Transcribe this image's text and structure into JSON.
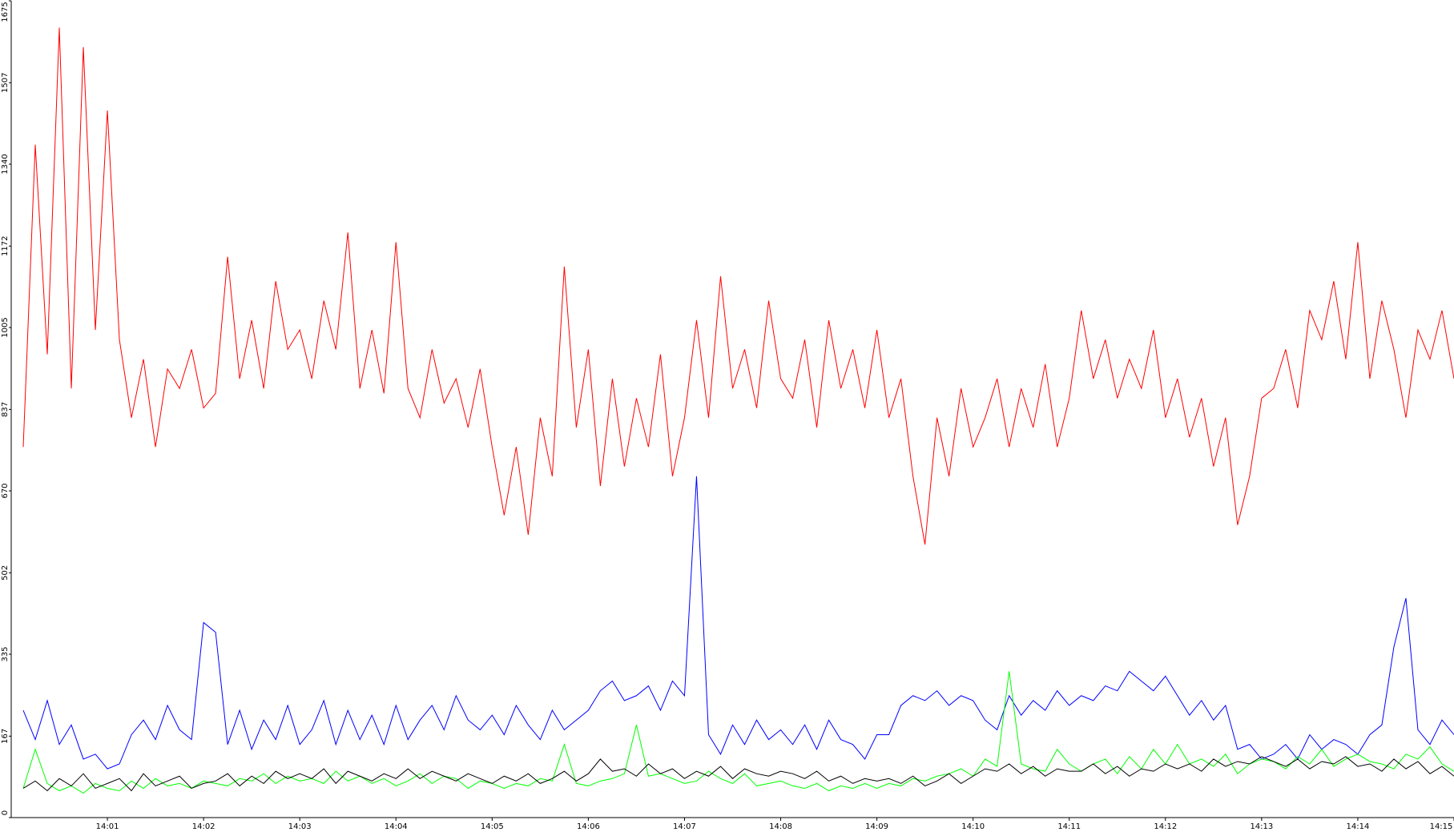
{
  "chart_data": {
    "type": "line",
    "xlim": [
      840,
      855
    ],
    "xticks": [
      {
        "value": 841,
        "label": "14:01"
      },
      {
        "value": 842,
        "label": "14:02"
      },
      {
        "value": 843,
        "label": "14:03"
      },
      {
        "value": 844,
        "label": "14:04"
      },
      {
        "value": 845,
        "label": "14:05"
      },
      {
        "value": 846,
        "label": "14:06"
      },
      {
        "value": 847,
        "label": "14:07"
      },
      {
        "value": 848,
        "label": "14:08"
      },
      {
        "value": 849,
        "label": "14:09"
      },
      {
        "value": 850,
        "label": "14:10"
      },
      {
        "value": 851,
        "label": "14:11"
      },
      {
        "value": 852,
        "label": "14:12"
      },
      {
        "value": 853,
        "label": "14:13"
      },
      {
        "value": 854,
        "label": "14:14"
      },
      {
        "value": 855,
        "label": "14:15"
      }
    ],
    "ylim": [
      0,
      1675
    ],
    "yticks": [
      0,
      167,
      335,
      502,
      670,
      837,
      1005,
      1172,
      1340,
      1507,
      1675
    ],
    "x": [
      840.125,
      840.25,
      840.375,
      840.5,
      840.625,
      840.75,
      840.875,
      841,
      841.125,
      841.25,
      841.375,
      841.5,
      841.625,
      841.75,
      841.875,
      842,
      842.125,
      842.25,
      842.375,
      842.5,
      842.625,
      842.75,
      842.875,
      843,
      843.125,
      843.25,
      843.375,
      843.5,
      843.625,
      843.75,
      843.875,
      844,
      844.125,
      844.25,
      844.375,
      844.5,
      844.625,
      844.75,
      844.875,
      845,
      845.125,
      845.25,
      845.375,
      845.5,
      845.625,
      845.75,
      845.875,
      846,
      846.125,
      846.25,
      846.375,
      846.5,
      846.625,
      846.75,
      846.875,
      847,
      847.125,
      847.25,
      847.375,
      847.5,
      847.625,
      847.75,
      847.875,
      848,
      848.125,
      848.25,
      848.375,
      848.5,
      848.625,
      848.75,
      848.875,
      849,
      849.125,
      849.25,
      849.375,
      849.5,
      849.625,
      849.75,
      849.875,
      850,
      850.125,
      850.25,
      850.375,
      850.5,
      850.625,
      850.75,
      850.875,
      851,
      851.125,
      851.25,
      851.375,
      851.5,
      851.625,
      851.75,
      851.875,
      852,
      852.125,
      852.25,
      852.375,
      852.5,
      852.625,
      852.75,
      852.875,
      853,
      853.125,
      853.25,
      853.375,
      853.5,
      853.625,
      853.75,
      853.875,
      854,
      854.125,
      854.25,
      854.375,
      854.5,
      854.625,
      854.75,
      854.875,
      855
    ],
    "series": [
      {
        "color": "#ff0000",
        "values": [
          760,
          1380,
          950,
          1620,
          880,
          1580,
          1000,
          1450,
          980,
          820,
          940,
          760,
          920,
          880,
          960,
          840,
          870,
          1150,
          900,
          1020,
          880,
          1100,
          960,
          1000,
          900,
          1060,
          960,
          1200,
          880,
          1000,
          870,
          1180,
          880,
          820,
          960,
          850,
          900,
          800,
          920,
          760,
          620,
          760,
          580,
          820,
          700,
          1130,
          800,
          960,
          680,
          900,
          720,
          860,
          760,
          950,
          700,
          820,
          1020,
          820,
          1110,
          880,
          960,
          840,
          1060,
          900,
          860,
          980,
          800,
          1020,
          880,
          960,
          840,
          1000,
          820,
          900,
          700,
          560,
          820,
          700,
          880,
          760,
          820,
          900,
          760,
          880,
          800,
          930,
          760,
          860,
          1040,
          900,
          980,
          860,
          940,
          880,
          1000,
          820,
          900,
          780,
          860,
          720,
          820,
          600,
          700,
          860,
          880,
          960,
          840,
          1040,
          980,
          1100,
          940,
          1180,
          900,
          1060,
          960,
          820,
          1000,
          940,
          1040,
          900
        ]
      },
      {
        "color": "#0000ff",
        "values": [
          220,
          160,
          240,
          150,
          190,
          120,
          130,
          100,
          110,
          170,
          200,
          160,
          230,
          180,
          160,
          400,
          380,
          150,
          220,
          140,
          200,
          160,
          230,
          150,
          180,
          240,
          150,
          220,
          160,
          210,
          150,
          230,
          160,
          200,
          230,
          180,
          250,
          200,
          180,
          210,
          170,
          230,
          190,
          160,
          220,
          180,
          200,
          220,
          260,
          280,
          240,
          250,
          270,
          220,
          280,
          250,
          700,
          170,
          130,
          190,
          150,
          200,
          160,
          180,
          150,
          190,
          140,
          200,
          160,
          150,
          120,
          170,
          170,
          230,
          250,
          240,
          260,
          230,
          250,
          240,
          200,
          180,
          250,
          210,
          240,
          220,
          260,
          230,
          250,
          240,
          270,
          260,
          300,
          280,
          260,
          290,
          250,
          210,
          240,
          200,
          230,
          140,
          150,
          120,
          130,
          150,
          120,
          170,
          140,
          160,
          150,
          130,
          170,
          190,
          350,
          450,
          180,
          150,
          200,
          170
        ]
      },
      {
        "color": "#00ff00",
        "values": [
          60,
          140,
          70,
          55,
          65,
          50,
          70,
          60,
          55,
          75,
          60,
          80,
          65,
          70,
          60,
          75,
          70,
          65,
          80,
          75,
          90,
          70,
          85,
          75,
          80,
          70,
          95,
          75,
          85,
          70,
          80,
          65,
          75,
          90,
          70,
          85,
          80,
          60,
          75,
          70,
          60,
          70,
          65,
          80,
          75,
          150,
          70,
          65,
          75,
          80,
          90,
          190,
          85,
          90,
          80,
          70,
          75,
          95,
          80,
          70,
          90,
          65,
          70,
          75,
          65,
          60,
          70,
          55,
          65,
          60,
          70,
          60,
          70,
          65,
          80,
          75,
          85,
          90,
          100,
          85,
          120,
          105,
          300,
          110,
          100,
          95,
          140,
          110,
          95,
          110,
          120,
          90,
          125,
          100,
          140,
          110,
          150,
          110,
          120,
          105,
          130,
          90,
          110,
          120,
          115,
          100,
          125,
          110,
          140,
          105,
          120,
          130,
          115,
          110,
          100,
          130,
          120,
          145,
          110,
          95
        ]
      },
      {
        "color": "#000000",
        "values": [
          60,
          75,
          55,
          80,
          65,
          90,
          60,
          70,
          80,
          55,
          90,
          65,
          75,
          85,
          60,
          70,
          75,
          90,
          65,
          85,
          70,
          95,
          80,
          90,
          80,
          100,
          70,
          95,
          85,
          75,
          90,
          80,
          100,
          80,
          95,
          85,
          75,
          90,
          80,
          70,
          85,
          75,
          90,
          70,
          80,
          95,
          75,
          90,
          120,
          95,
          100,
          85,
          110,
          90,
          100,
          80,
          95,
          85,
          105,
          80,
          100,
          90,
          85,
          95,
          90,
          80,
          95,
          75,
          85,
          70,
          80,
          75,
          80,
          70,
          85,
          65,
          75,
          90,
          70,
          85,
          100,
          95,
          110,
          90,
          105,
          85,
          100,
          95,
          95,
          110,
          90,
          105,
          85,
          100,
          95,
          110,
          100,
          110,
          95,
          120,
          105,
          115,
          110,
          125,
          115,
          105,
          120,
          100,
          115,
          110,
          125,
          105,
          110,
          95,
          120,
          100,
          115,
          90,
          105,
          85
        ]
      }
    ]
  }
}
